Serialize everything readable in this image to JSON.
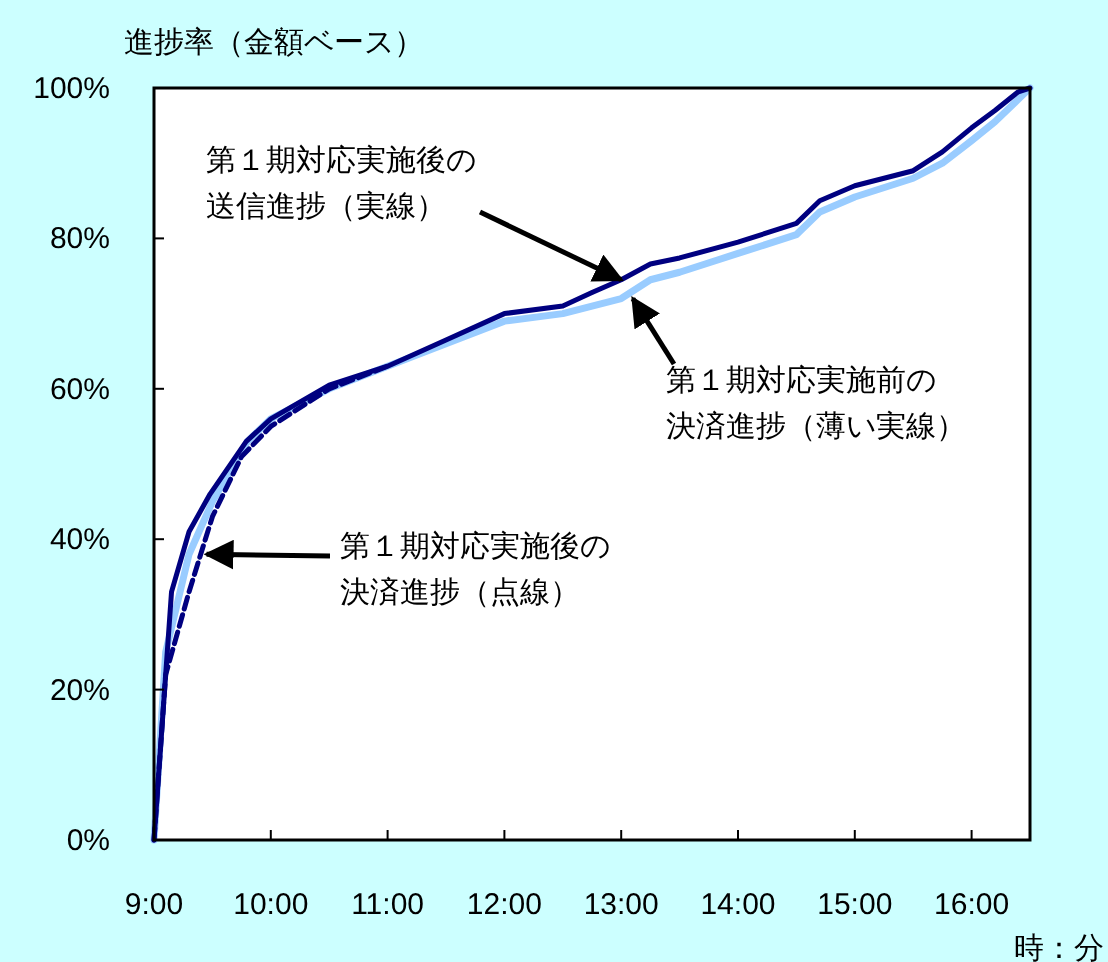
{
  "chart_data": {
    "type": "line",
    "ylabel": "進捗率（金額ベース）",
    "xlabel": "時：分",
    "xlim": [
      9,
      16.5
    ],
    "xticks": [
      {
        "value": 9,
        "label": "9:00"
      },
      {
        "value": 10,
        "label": "10:00"
      },
      {
        "value": 11,
        "label": "11:00"
      },
      {
        "value": 12,
        "label": "12:00"
      },
      {
        "value": 13,
        "label": "13:00"
      },
      {
        "value": 14,
        "label": "14:00"
      },
      {
        "value": 15,
        "label": "15:00"
      },
      {
        "value": 16,
        "label": "16:00"
      }
    ],
    "ylim": [
      0,
      100
    ],
    "yticks": [
      {
        "value": 0,
        "label": "0%"
      },
      {
        "value": 20,
        "label": "20%"
      },
      {
        "value": 40,
        "label": "40%"
      },
      {
        "value": 60,
        "label": "60%"
      },
      {
        "value": 80,
        "label": "80%"
      },
      {
        "value": 100,
        "label": "100%"
      }
    ],
    "grid": false,
    "marker": "none",
    "series": [
      {
        "color": "#99ccff",
        "line_style": "solid",
        "x": [
          9,
          9.1,
          9.3,
          9.5,
          9.8,
          10,
          10.5,
          11,
          11.5,
          12,
          12.5,
          12.75,
          13,
          13.25,
          13.5,
          14,
          14.5,
          14.7,
          15,
          15.5,
          15.75,
          16,
          16.2,
          16.4,
          16.5
        ],
        "values": [
          0,
          25,
          38,
          45,
          53,
          56,
          60,
          63,
          66,
          69,
          70,
          71,
          72,
          74.5,
          75.5,
          78,
          80.5,
          83.5,
          85.5,
          88,
          90,
          93,
          95.5,
          98.5,
          100
        ]
      },
      {
        "color": "#000080",
        "line_style": "dashed",
        "x": [
          9,
          9.1,
          9.3,
          9.5,
          9.75,
          10,
          10.5,
          11
        ],
        "values": [
          0,
          22,
          33,
          43,
          51,
          55,
          60,
          63
        ]
      },
      {
        "color": "#000080",
        "line_style": "solid",
        "x": [
          9,
          9.15,
          9.3,
          9.48,
          9.79,
          10,
          10.5,
          11,
          11.5,
          12,
          12.5,
          12.75,
          13,
          13.25,
          13.5,
          14,
          14.5,
          14.7,
          15,
          15.5,
          15.75,
          16,
          16.2,
          16.4,
          16.5
        ],
        "values": [
          0,
          33,
          41,
          46,
          53,
          56,
          60.5,
          63,
          66.5,
          70,
          71,
          72.8,
          74.5,
          76.6,
          77.4,
          79.5,
          82,
          85,
          87,
          89,
          91.5,
          94.7,
          97,
          99.5,
          100
        ]
      }
    ],
    "annotations": [
      {
        "text": "第１期対応実施後の送信進捗（実線）",
        "x": 13,
        "y": 74.5
      },
      {
        "text": "第１期対応実施前の決済進捗（薄い実線）",
        "x": 13.1,
        "y": 72
      },
      {
        "text": "第１期対応実施後の決済進捗（点線）",
        "x": 9.45,
        "y": 38
      }
    ]
  }
}
